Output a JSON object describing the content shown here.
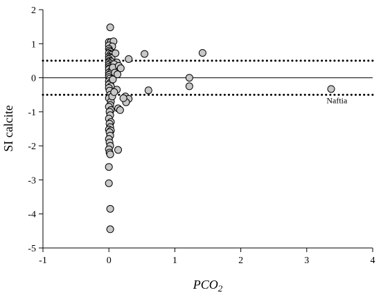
{
  "chart_data": {
    "type": "scatter",
    "title": "",
    "xlabel": "PCO",
    "xlabel_sub": "2",
    "ylabel": "SI calcite",
    "xlim": [
      -1,
      4
    ],
    "ylim": [
      -5,
      2
    ],
    "x_ticks": [
      -1,
      0,
      1,
      2,
      3,
      4
    ],
    "y_ticks": [
      -5,
      -4,
      -3,
      -2,
      -1,
      0,
      1,
      2
    ],
    "grid": false,
    "reference_lines": [
      {
        "y": 0,
        "style": "solid"
      },
      {
        "y": 0.5,
        "style": "dotted"
      },
      {
        "y": -0.5,
        "style": "dotted"
      }
    ],
    "marker_color": "#c8c8c8",
    "annotations": [
      {
        "text": "Naftia",
        "x": 3.3,
        "y": -0.75
      }
    ],
    "points": [
      [
        0.02,
        1.48
      ],
      [
        0.0,
        1.05
      ],
      [
        0.03,
        1.05
      ],
      [
        0.07,
        1.07
      ],
      [
        0.0,
        0.95
      ],
      [
        0.05,
        0.92
      ],
      [
        0.0,
        0.85
      ],
      [
        0.01,
        0.8
      ],
      [
        0.02,
        0.76
      ],
      [
        0.0,
        0.72
      ],
      [
        0.03,
        0.7
      ],
      [
        0.05,
        0.68
      ],
      [
        0.0,
        0.62
      ],
      [
        0.02,
        0.6
      ],
      [
        0.04,
        0.58
      ],
      [
        0.0,
        0.55
      ],
      [
        0.01,
        0.5
      ],
      [
        0.03,
        0.48
      ],
      [
        0.0,
        0.45
      ],
      [
        0.02,
        0.42
      ],
      [
        0.0,
        0.38
      ],
      [
        0.04,
        0.36
      ],
      [
        0.0,
        0.32
      ],
      [
        0.01,
        0.28
      ],
      [
        0.0,
        0.25
      ],
      [
        0.03,
        0.2
      ],
      [
        0.0,
        0.15
      ],
      [
        0.02,
        0.12
      ],
      [
        0.0,
        0.08
      ],
      [
        0.0,
        0.02
      ],
      [
        0.01,
        -0.03
      ],
      [
        0.0,
        -0.1
      ],
      [
        0.02,
        -0.15
      ],
      [
        0.0,
        -0.2
      ],
      [
        0.03,
        -0.25
      ],
      [
        0.0,
        -0.3
      ],
      [
        0.01,
        -0.38
      ],
      [
        0.02,
        -0.5
      ],
      [
        0.0,
        -0.6
      ],
      [
        0.03,
        -0.7
      ],
      [
        0.02,
        -0.8
      ],
      [
        0.0,
        -0.85
      ],
      [
        0.03,
        -0.95
      ],
      [
        0.01,
        -1.0
      ],
      [
        0.02,
        -1.1
      ],
      [
        0.0,
        -1.2
      ],
      [
        0.03,
        -1.3
      ],
      [
        0.01,
        -1.35
      ],
      [
        0.02,
        -1.45
      ],
      [
        0.0,
        -1.52
      ],
      [
        0.03,
        -1.55
      ],
      [
        0.01,
        -1.6
      ],
      [
        0.02,
        -1.7
      ],
      [
        0.0,
        -1.8
      ],
      [
        0.01,
        -1.9
      ],
      [
        0.02,
        -2.0
      ],
      [
        0.0,
        -2.1
      ],
      [
        0.01,
        -2.2
      ],
      [
        0.02,
        -2.25
      ],
      [
        0.0,
        -2.62
      ],
      [
        0.0,
        -3.1
      ],
      [
        0.02,
        -3.85
      ],
      [
        0.02,
        -4.45
      ],
      [
        0.1,
        0.72
      ],
      [
        0.12,
        0.45
      ],
      [
        0.08,
        0.4
      ],
      [
        0.06,
        0.3
      ],
      [
        0.09,
        0.15
      ],
      [
        0.13,
        0.1
      ],
      [
        0.15,
        0.35
      ],
      [
        0.18,
        0.28
      ],
      [
        0.12,
        -0.35
      ],
      [
        0.06,
        -0.05
      ],
      [
        0.05,
        -0.55
      ],
      [
        0.14,
        -0.9
      ],
      [
        0.17,
        -0.95
      ],
      [
        0.25,
        -0.55
      ],
      [
        0.3,
        -0.62
      ],
      [
        0.26,
        -0.72
      ],
      [
        0.3,
        0.55
      ],
      [
        0.54,
        0.7
      ],
      [
        0.6,
        -0.37
      ],
      [
        1.22,
        0.0
      ],
      [
        1.22,
        -0.25
      ],
      [
        1.42,
        0.73
      ],
      [
        3.37,
        -0.33
      ],
      [
        0.14,
        -2.12
      ],
      [
        0.22,
        -0.6
      ],
      [
        0.08,
        -0.42
      ]
    ]
  }
}
